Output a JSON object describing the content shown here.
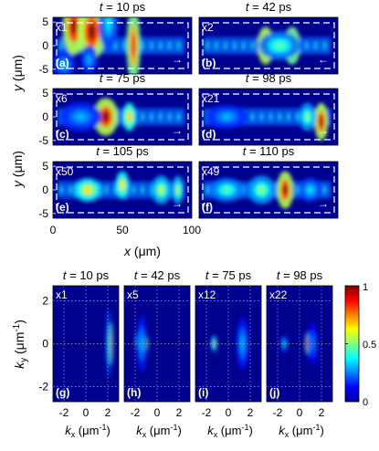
{
  "top": {
    "panels": [
      {
        "title_var": "t",
        "title_val": " = 10 ps",
        "mult": "x1",
        "label": "(a)",
        "arrow": "→",
        "blobs": [
          [
            15,
            4,
            8,
            6,
            1.0
          ],
          [
            28,
            3,
            10,
            6,
            1.0
          ],
          [
            40,
            5,
            7,
            6,
            0.35
          ],
          [
            58,
            0,
            5,
            8,
            0.9
          ],
          [
            8,
            -4,
            8,
            3,
            0.3
          ],
          [
            26,
            -3,
            6,
            3,
            0.3
          ]
        ]
      },
      {
        "title_var": "t",
        "title_val": " = 42 ps",
        "mult": "x2",
        "label": "(b)",
        "arrow": "←",
        "blobs": [
          [
            48,
            0,
            6,
            4,
            1.0
          ],
          [
            67,
            0,
            6,
            4,
            0.9
          ],
          [
            58,
            0,
            15,
            3,
            0.45
          ]
        ]
      },
      {
        "title_var": "t",
        "title_val": " = 75 ps",
        "mult": "x6",
        "label": "(c)",
        "arrow": "→",
        "blobs": [
          [
            38,
            0,
            9,
            4,
            1.0
          ],
          [
            55,
            0,
            5,
            3,
            0.7
          ],
          [
            20,
            0,
            15,
            3,
            0.3
          ]
        ]
      },
      {
        "title_var": "t",
        "title_val": " = 98 ps",
        "mult": "x21",
        "label": "(d)",
        "arrow": "→",
        "blobs": [
          [
            88,
            -1,
            5,
            4,
            1.0
          ],
          [
            78,
            0,
            6,
            3,
            0.5
          ],
          [
            20,
            0,
            15,
            2.5,
            0.3
          ]
        ]
      },
      {
        "title_var": "t",
        "title_val": " = 105 ps",
        "mult": "x50",
        "label": "(e)",
        "arrow": "→",
        "blobs": [
          [
            25,
            0,
            10,
            2.5,
            0.65
          ],
          [
            50,
            1,
            5,
            3,
            0.65
          ],
          [
            78,
            0,
            7,
            3,
            0.55
          ],
          [
            90,
            0,
            4,
            3,
            0.55
          ]
        ]
      },
      {
        "title_var": "t",
        "title_val": " = 110 ps",
        "mult": "x49",
        "label": "(f)",
        "arrow": "→",
        "blobs": [
          [
            62,
            0,
            6,
            4,
            1.0
          ],
          [
            20,
            0,
            12,
            2.5,
            0.45
          ],
          [
            45,
            0,
            10,
            3,
            0.5
          ],
          [
            80,
            0,
            8,
            2.5,
            0.35
          ]
        ]
      }
    ],
    "y_ticks": [
      "5",
      "0",
      "-5"
    ],
    "x_ticks": [
      "0",
      "50",
      "100"
    ],
    "ylabel_var": "y",
    "ylabel_unit": " (μm)",
    "xlabel_var": "x",
    "xlabel_unit": " (μm)"
  },
  "bottom": {
    "panels": [
      {
        "title_var": "t",
        "title_val": " = 10 ps",
        "mult": "x1",
        "label": "(g)",
        "blobs": [
          [
            2.3,
            0,
            0.12,
            1.0,
            1.0
          ],
          [
            2.1,
            0,
            0.15,
            1.6,
            0.4
          ]
        ]
      },
      {
        "title_var": "t",
        "title_val": " = 42 ps",
        "mult": "x5",
        "label": "(h)",
        "blobs": [
          [
            -1.2,
            0,
            0.25,
            0.5,
            1.0
          ],
          [
            -1.6,
            0.1,
            0.25,
            0.5,
            0.6
          ],
          [
            -1.4,
            0,
            0.3,
            1.3,
            0.3
          ]
        ]
      },
      {
        "title_var": "t",
        "title_val": " = 75 ps",
        "mult": "x12",
        "label": "(i)",
        "blobs": [
          [
            1.3,
            0,
            0.22,
            0.55,
            1.0
          ],
          [
            -1.3,
            0,
            0.18,
            0.4,
            0.55
          ],
          [
            1.3,
            0,
            0.35,
            1.2,
            0.3
          ]
        ]
      },
      {
        "title_var": "t",
        "title_val": " = 98 ps",
        "mult": "x22",
        "label": "(j)",
        "blobs": [
          [
            0.7,
            0,
            0.12,
            0.5,
            0.9
          ],
          [
            -1.4,
            0,
            0.2,
            0.4,
            0.35
          ],
          [
            1.2,
            0,
            0.3,
            1.0,
            0.25
          ]
        ]
      }
    ],
    "y_ticks": [
      "2",
      "0",
      "-2"
    ],
    "x_ticks": [
      "-2",
      "0",
      "2"
    ],
    "ylabel_var": "k",
    "ylabel_sub": "y",
    "ylabel_unit": " (μm",
    "ylabel_exp": "-1",
    "ylabel_close": ")",
    "xlabel_var": "k",
    "xlabel_sub": "x",
    "xlabel_unit": " (μm",
    "xlabel_exp": "-1",
    "xlabel_close": ")"
  },
  "colorbar": {
    "ticks": [
      "1",
      "0.5",
      "0"
    ],
    "colormap": "jet"
  },
  "colors": {
    "background": "#00008f",
    "dashed": "#ffffff",
    "grid": "#b0b0b0"
  }
}
